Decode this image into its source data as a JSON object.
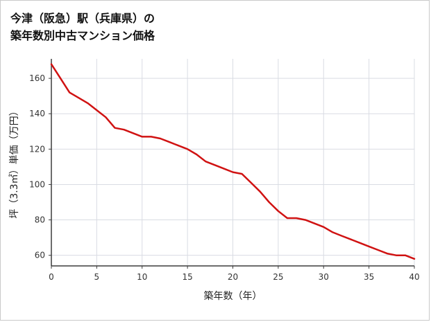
{
  "page": {
    "title_line1": "今津（阪急）駅（兵庫県）の",
    "title_line2": "築年数別中古マンション価格"
  },
  "chart_data": {
    "type": "line",
    "title": "今津（阪急）駅（兵庫県）の築年数別中古マンション価格",
    "xlabel": "築年数（年）",
    "ylabel": "坪（3.3㎡）単価（万円）",
    "x": [
      0,
      1,
      2,
      3,
      4,
      5,
      6,
      7,
      8,
      9,
      10,
      11,
      12,
      13,
      14,
      15,
      16,
      17,
      18,
      19,
      20,
      21,
      22,
      23,
      24,
      25,
      26,
      27,
      28,
      29,
      30,
      31,
      32,
      33,
      34,
      35,
      36,
      37,
      38,
      39,
      40
    ],
    "values": [
      168,
      160,
      152,
      149,
      146,
      142,
      138,
      132,
      131,
      129,
      127,
      127,
      126,
      124,
      122,
      120,
      117,
      113,
      111,
      109,
      107,
      106,
      101,
      96,
      90,
      85,
      81,
      81,
      80,
      78,
      76,
      73,
      71,
      69,
      67,
      65,
      63,
      61,
      60,
      60,
      58
    ],
    "xlim": [
      0,
      40
    ],
    "ylim": [
      54,
      171
    ],
    "x_ticks": [
      0,
      5,
      10,
      15,
      20,
      25,
      30,
      35,
      40
    ],
    "y_ticks": [
      60,
      80,
      100,
      120,
      140,
      160
    ],
    "grid": true,
    "legend": "none",
    "line_color": "#d01212",
    "grid_color": "#d9dce3",
    "axis_color": "#3c3c3c"
  }
}
